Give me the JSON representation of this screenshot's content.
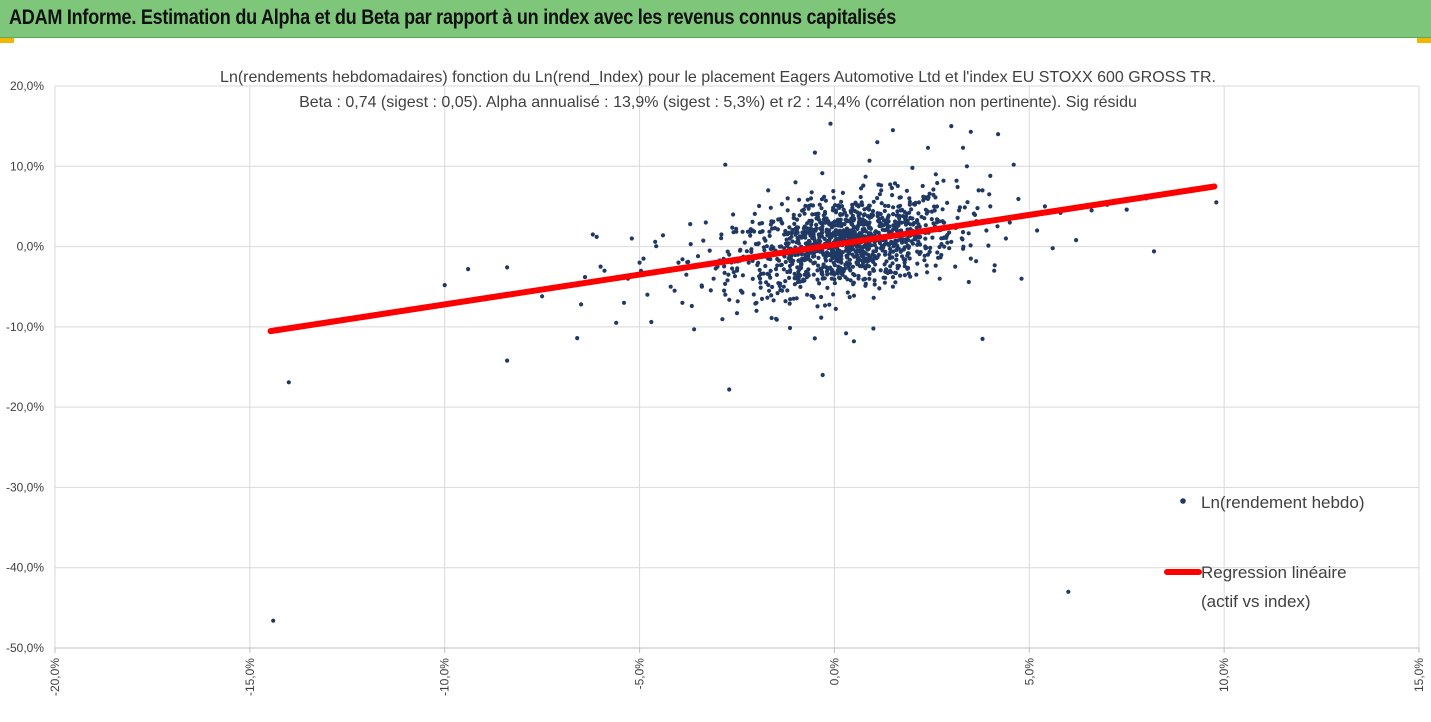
{
  "header": {
    "title": "ADAM Informe. Estimation du Alpha et du Beta par rapport à un index avec les revenus connus capitalisés"
  },
  "colors": {
    "header_bg": "#7dc67a",
    "accent": "#f2b600",
    "points": "#203864",
    "regression": "#ff0000",
    "grid": "#d9d9d9"
  },
  "chart_data": {
    "type": "scatter",
    "title_line1": "Ln(rendements hebdomadaires) fonction du Ln(rend_Index) pour le placement Eagers Automotive Ltd et l'index EU STOXX 600 GROSS TR.",
    "title_line2": "Beta : 0,74 (sigest : 0,05). Alpha annualisé : 13,9% (sigest : 5,3%) et r2 : 14,4% (corrélation non pertinente). Sig résidu",
    "xlim": [
      -0.2,
      0.15
    ],
    "ylim": [
      -0.5,
      0.2
    ],
    "x_ticks": [
      -0.2,
      -0.15,
      -0.1,
      -0.05,
      0.0,
      0.05,
      0.1,
      0.15
    ],
    "y_ticks": [
      0.2,
      0.1,
      0.0,
      -0.1,
      -0.2,
      -0.3,
      -0.4,
      -0.5
    ],
    "x_tick_labels": [
      "-20,0%",
      "-15,0%",
      "-10,0%",
      "-5,0%",
      "0,0%",
      "5,0%",
      "10,0%",
      "15,0%"
    ],
    "y_tick_labels": [
      "20,0%",
      "10,0%",
      "0,0%",
      "-10,0%",
      "-20,0%",
      "-30,0%",
      "-40,0%",
      "-50,0%"
    ],
    "grid": "horizontal and vertical",
    "legend_placement": "right",
    "series": [
      {
        "name": "Ln(rendement hebdo)",
        "kind": "scatter",
        "points": [
          [
            -0.144,
            -0.466
          ],
          [
            -0.14,
            -0.169
          ],
          [
            -0.1,
            -0.048
          ],
          [
            -0.094,
            -0.028
          ],
          [
            -0.084,
            -0.026
          ],
          [
            -0.084,
            -0.142
          ],
          [
            -0.075,
            -0.062
          ],
          [
            -0.073,
            -0.052
          ],
          [
            -0.07,
            -0.05
          ],
          [
            -0.066,
            -0.114
          ],
          [
            -0.065,
            -0.072
          ],
          [
            -0.064,
            -0.038
          ],
          [
            -0.062,
            0.015
          ],
          [
            -0.061,
            0.012
          ],
          [
            -0.06,
            -0.025
          ],
          [
            -0.059,
            -0.03
          ],
          [
            -0.056,
            -0.095
          ],
          [
            -0.054,
            -0.07
          ],
          [
            -0.053,
            -0.04
          ],
          [
            -0.052,
            0.01
          ],
          [
            -0.05,
            -0.02
          ],
          [
            -0.049,
            -0.015
          ],
          [
            -0.048,
            -0.06
          ],
          [
            -0.047,
            -0.094
          ],
          [
            -0.046,
            0.006
          ],
          [
            -0.045,
            -0.032
          ],
          [
            -0.044,
            0.014
          ],
          [
            -0.042,
            -0.05
          ],
          [
            -0.041,
            -0.055
          ],
          [
            -0.04,
            -0.02
          ],
          [
            -0.039,
            -0.07
          ],
          [
            -0.038,
            -0.035
          ],
          [
            -0.037,
            0.028
          ],
          [
            -0.036,
            -0.103
          ],
          [
            -0.035,
            -0.012
          ],
          [
            -0.034,
            -0.05
          ],
          [
            -0.033,
            0.03
          ],
          [
            -0.032,
            -0.005
          ],
          [
            -0.031,
            -0.04
          ],
          [
            -0.03,
            -0.025
          ],
          [
            -0.029,
            0.015
          ],
          [
            -0.028,
            -0.06
          ],
          [
            -0.027,
            -0.01
          ],
          [
            -0.026,
            0.04
          ],
          [
            -0.025,
            -0.03
          ],
          [
            -0.024,
            -0.055
          ],
          [
            -0.023,
            0.005
          ],
          [
            -0.022,
            -0.02
          ],
          [
            -0.021,
            0.02
          ],
          [
            -0.02,
            -0.08
          ],
          [
            -0.019,
            -0.045
          ],
          [
            -0.018,
            0.01
          ],
          [
            -0.017,
            -0.015
          ],
          [
            -0.016,
            0.03
          ],
          [
            -0.015,
            -0.028
          ],
          [
            -0.014,
            0.0
          ],
          [
            -0.013,
            -0.05
          ],
          [
            -0.012,
            0.045
          ],
          [
            -0.011,
            -0.008
          ],
          [
            -0.01,
            0.022
          ],
          [
            -0.009,
            -0.035
          ],
          [
            -0.008,
            0.012
          ],
          [
            -0.007,
            -0.06
          ],
          [
            -0.006,
            0.06
          ],
          [
            -0.005,
            -0.02
          ],
          [
            -0.004,
            0.015
          ],
          [
            -0.003,
            -0.04
          ],
          [
            -0.002,
            0.035
          ],
          [
            -0.001,
            -0.01
          ],
          [
            0.0,
            0.005
          ],
          [
            0.001,
            -0.025
          ],
          [
            0.002,
            0.04
          ],
          [
            0.003,
            -0.005
          ],
          [
            0.004,
            0.02
          ],
          [
            0.005,
            -0.045
          ],
          [
            0.006,
            0.01
          ],
          [
            0.007,
            0.055
          ],
          [
            0.008,
            -0.015
          ],
          [
            0.009,
            0.03
          ],
          [
            0.01,
            -0.03
          ],
          [
            0.011,
            0.008
          ],
          [
            0.012,
            0.07
          ],
          [
            0.013,
            -0.01
          ],
          [
            0.014,
            0.025
          ],
          [
            0.015,
            -0.05
          ],
          [
            0.016,
            0.015
          ],
          [
            0.017,
            0.045
          ],
          [
            0.018,
            -0.02
          ],
          [
            0.019,
            0.0
          ],
          [
            0.02,
            0.035
          ],
          [
            0.021,
            -0.035
          ],
          [
            0.022,
            0.012
          ],
          [
            0.023,
            0.06
          ],
          [
            0.024,
            -0.01
          ],
          [
            0.025,
            0.02
          ],
          [
            0.026,
            0.09
          ],
          [
            0.027,
            -0.04
          ],
          [
            0.028,
            0.03
          ],
          [
            0.029,
            0.005
          ],
          [
            0.03,
            0.15
          ],
          [
            0.031,
            -0.025
          ],
          [
            0.032,
            0.045
          ],
          [
            0.033,
            0.018
          ],
          [
            0.034,
            0.1
          ],
          [
            0.035,
            -0.015
          ],
          [
            0.036,
            0.03
          ],
          [
            0.037,
            0.07
          ],
          [
            0.038,
            -0.115
          ],
          [
            0.039,
            0.02
          ],
          [
            0.04,
            0.05
          ],
          [
            0.041,
            -0.03
          ],
          [
            0.042,
            0.14
          ],
          [
            0.044,
            0.01
          ],
          [
            0.045,
            0.03
          ],
          [
            0.046,
            0.102
          ],
          [
            0.048,
            -0.04
          ],
          [
            0.05,
            0.04
          ],
          [
            0.052,
            0.02
          ],
          [
            0.054,
            0.05
          ],
          [
            0.056,
            -0.002
          ],
          [
            0.058,
            0.042
          ],
          [
            0.06,
            -0.43
          ],
          [
            0.062,
            0.008
          ],
          [
            0.066,
            0.045
          ],
          [
            0.07,
            0.052
          ],
          [
            0.075,
            0.046
          ],
          [
            0.08,
            0.06
          ],
          [
            0.082,
            -0.006
          ],
          [
            0.098,
            0.055
          ],
          [
            -0.028,
            0.102
          ],
          [
            -0.027,
            -0.178
          ],
          [
            -0.003,
            -0.16
          ],
          [
            -0.001,
            0.153
          ],
          [
            0.003,
            -0.108
          ],
          [
            0.005,
            -0.118
          ],
          [
            0.01,
            -0.102
          ],
          [
            0.009,
            0.107
          ],
          [
            0.008,
            0.087
          ],
          [
            0.011,
            0.13
          ],
          [
            0.015,
            0.145
          ],
          [
            0.02,
            0.098
          ],
          [
            0.024,
            0.123
          ],
          [
            0.028,
            0.082
          ],
          [
            0.033,
            0.123
          ],
          [
            0.035,
            0.143
          ],
          [
            0.04,
            0.088
          ],
          [
            0.038,
            0.07
          ],
          [
            -0.005,
            0.117
          ],
          [
            -0.01,
            0.08
          ],
          [
            -0.012,
            0.06
          ],
          [
            -0.015,
            -0.09
          ],
          [
            -0.017,
            0.07
          ],
          [
            -0.02,
            -0.07
          ],
          [
            -0.025,
            -0.083
          ]
        ]
      },
      {
        "name": "Regression linéaire (actif vs index)",
        "kind": "line",
        "x": [
          -0.1447,
          0.0975
        ],
        "y": [
          -0.1053,
          0.0748
        ]
      }
    ],
    "legend": [
      {
        "label": "Ln(rendement hebdo)",
        "marker": "dot"
      },
      {
        "label_line1": "Regression linéaire",
        "label_line2": "(actif vs index)",
        "marker": "thick-line"
      }
    ]
  }
}
